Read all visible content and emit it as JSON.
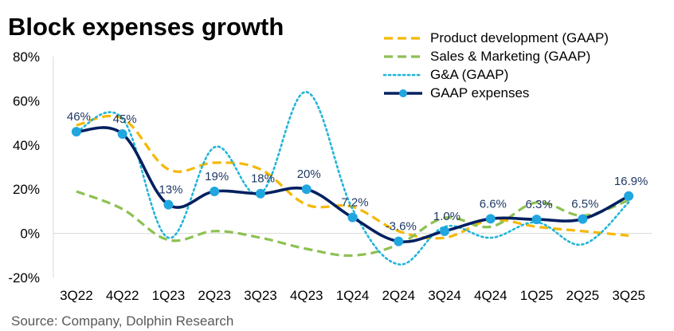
{
  "title": "Block expenses growth",
  "source": "Source: Company, Dolphin Research",
  "chart_data": {
    "type": "line",
    "title": "Block expenses growth",
    "xlabel": "",
    "ylabel": "",
    "categories": [
      "3Q22",
      "4Q22",
      "1Q23",
      "2Q23",
      "3Q23",
      "4Q23",
      "1Q24",
      "2Q24",
      "3Q24",
      "4Q24",
      "1Q25",
      "2Q25",
      "3Q25"
    ],
    "ylim": [
      -20,
      80
    ],
    "yticks": [
      -20,
      0,
      20,
      40,
      60,
      80
    ],
    "ytick_labels": [
      "-20%",
      "0%",
      "20%",
      "40%",
      "60%",
      "80%"
    ],
    "grid": false,
    "legend_position": "top-right",
    "series": [
      {
        "name": "Product development (GAAP)",
        "color": "#f5b800",
        "style": "dashed",
        "values": [
          49,
          52,
          29,
          32,
          29,
          13,
          12,
          1,
          -2,
          6,
          3,
          1,
          -1
        ]
      },
      {
        "name": "Sales & Marketing (GAAP)",
        "color": "#8cc152",
        "style": "dashed",
        "values": [
          19,
          11,
          -3,
          1,
          -2,
          -7,
          -10,
          -5,
          7,
          3,
          14,
          8,
          15
        ]
      },
      {
        "name": "G&A (GAAP)",
        "color": "#21b5d8",
        "style": "dotted",
        "values": [
          46,
          52,
          -2,
          39,
          18,
          64,
          11,
          -14,
          3,
          -2,
          5,
          -5,
          14
        ]
      },
      {
        "name": "GAAP expenses",
        "color": "#002060",
        "style": "solid",
        "markers": true,
        "values": [
          46,
          45,
          13,
          19,
          18,
          20,
          7.2,
          -3.6,
          1.0,
          6.6,
          6.3,
          6.5,
          16.9
        ],
        "labels": [
          "46%",
          "45%",
          "13%",
          "19%",
          "18%",
          "20%",
          "7.2%",
          "-3.6%",
          "1.0%",
          "6.6%",
          "6.3%",
          "6.5%",
          "16.9%"
        ]
      }
    ]
  }
}
